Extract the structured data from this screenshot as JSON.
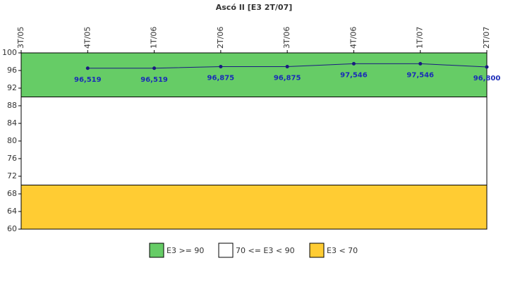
{
  "chart_data": {
    "type": "line",
    "title": "Ascó II [E3 2T/07]",
    "categories": [
      "3T/05",
      "4T/05",
      "1T/06",
      "2T/06",
      "3T/06",
      "4T/06",
      "1T/07",
      "2T/07"
    ],
    "series": [
      {
        "name": "E3",
        "color": "#1a1a80",
        "values": [
          null,
          96.519,
          96.519,
          96.875,
          96.875,
          97.546,
          97.546,
          96.8
        ],
        "value_labels": [
          null,
          "96,519",
          "96,519",
          "96,875",
          "96,875",
          "97,546",
          "97,546",
          "96,800"
        ]
      }
    ],
    "bands": [
      {
        "name": "E3 >= 90",
        "from": 90,
        "to": 100,
        "color": "#66cc66"
      },
      {
        "name": "70 <= E3 < 90",
        "from": 70,
        "to": 90,
        "color": "#ffffff"
      },
      {
        "name": "E3 < 70",
        "from": 60,
        "to": 70,
        "color": "#ffcc33"
      }
    ],
    "ylim": [
      60,
      100
    ],
    "yticks": [
      60,
      64,
      68,
      72,
      76,
      80,
      84,
      88,
      92,
      96,
      100
    ]
  }
}
